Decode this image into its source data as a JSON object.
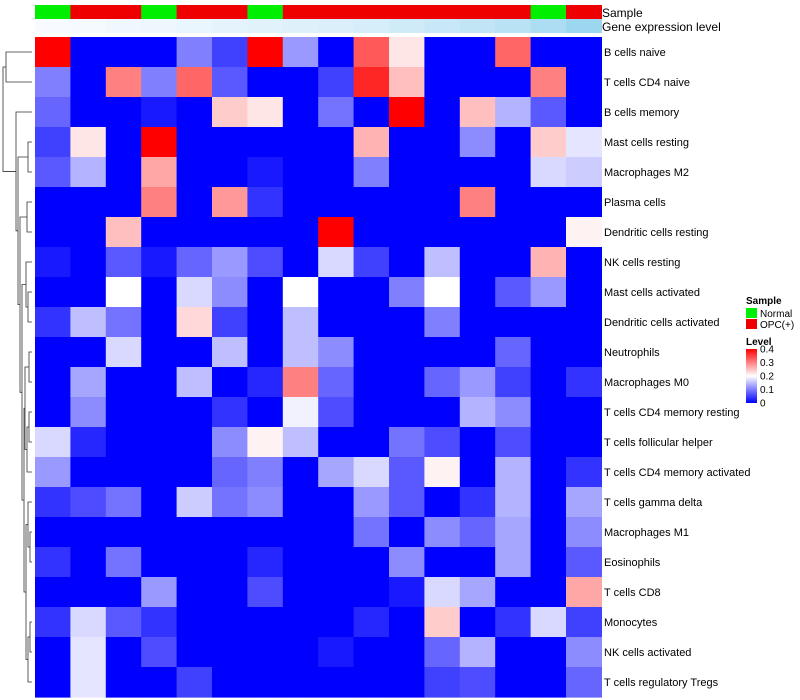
{
  "chart_data": {
    "type": "heatmap",
    "title": "",
    "rows": [
      "B cells naive",
      "T cells CD4 naive",
      "B cells memory",
      "Mast cells resting",
      "Macrophages M2",
      "Plasma cells",
      "Dendritic cells resting",
      "NK cells resting",
      "Mast cells activated",
      "Dendritic cells activated",
      "Neutrophils",
      "Macrophages M0",
      "T cells CD4 memory resting",
      "T cells follicular helper",
      "T cells CD4 memory activated",
      "T cells gamma delta",
      "Macrophages M1",
      "Eosinophils",
      "T cells CD8",
      "Monocytes",
      "NK cells activated",
      "T cells regulatory  Tregs"
    ],
    "columns": 16,
    "values": [
      [
        0.4,
        0.0,
        0.0,
        0.0,
        0.1,
        0.05,
        0.4,
        0.12,
        0.0,
        0.33,
        0.22,
        0.0,
        0.0,
        0.32,
        0.0,
        0.0
      ],
      [
        0.1,
        0.0,
        0.3,
        0.1,
        0.32,
        0.07,
        0.0,
        0.0,
        0.05,
        0.37,
        0.25,
        0.0,
        0.0,
        0.0,
        0.3,
        0.0
      ],
      [
        0.08,
        0.0,
        0.0,
        0.02,
        0.0,
        0.24,
        0.22,
        0.0,
        0.09,
        0.0,
        0.4,
        0.0,
        0.25,
        0.14,
        0.07,
        0.0
      ],
      [
        0.05,
        0.22,
        0.0,
        0.4,
        0.0,
        0.0,
        0.0,
        0.0,
        0.0,
        0.26,
        0.0,
        0.0,
        0.11,
        0.0,
        0.24,
        0.18
      ],
      [
        0.07,
        0.14,
        0.0,
        0.27,
        0.0,
        0.0,
        0.02,
        0.0,
        0.0,
        0.1,
        0.0,
        0.0,
        0.0,
        0.0,
        0.17,
        0.16
      ],
      [
        0.0,
        0.0,
        0.0,
        0.3,
        0.0,
        0.28,
        0.04,
        0.0,
        0.0,
        0.0,
        0.0,
        0.0,
        0.3,
        0.0,
        0.0,
        0.0
      ],
      [
        0.0,
        0.0,
        0.25,
        0.0,
        0.0,
        0.0,
        0.0,
        0.0,
        0.4,
        0.0,
        0.0,
        0.0,
        0.0,
        0.0,
        0.0,
        0.21
      ],
      [
        0.02,
        0.0,
        0.07,
        0.02,
        0.08,
        0.12,
        0.06,
        0.0,
        0.17,
        0.05,
        0.0,
        0.15,
        0.0,
        0.0,
        0.26,
        0.0
      ],
      [
        0.0,
        0.0,
        0.2,
        0.0,
        0.17,
        0.11,
        0.0,
        0.2,
        0.0,
        0.0,
        0.1,
        0.2,
        0.0,
        0.07,
        0.12,
        0.0
      ],
      [
        0.04,
        0.15,
        0.09,
        0.0,
        0.23,
        0.05,
        0.0,
        0.15,
        0.0,
        0.0,
        0.0,
        0.1,
        0.0,
        0.0,
        0.0,
        0.0
      ],
      [
        0.0,
        0.0,
        0.17,
        0.0,
        0.0,
        0.15,
        0.0,
        0.15,
        0.11,
        0.0,
        0.0,
        0.0,
        0.0,
        0.08,
        0.0,
        0.0
      ],
      [
        0.0,
        0.13,
        0.0,
        0.0,
        0.15,
        0.0,
        0.03,
        0.3,
        0.08,
        0.0,
        0.0,
        0.08,
        0.12,
        0.05,
        0.0,
        0.04
      ],
      [
        0.0,
        0.11,
        0.0,
        0.0,
        0.0,
        0.04,
        0.0,
        0.19,
        0.06,
        0.0,
        0.0,
        0.0,
        0.14,
        0.11,
        0.0,
        0.0
      ],
      [
        0.17,
        0.03,
        0.0,
        0.0,
        0.0,
        0.11,
        0.21,
        0.15,
        0.0,
        0.0,
        0.09,
        0.06,
        0.0,
        0.06,
        0.0,
        0.0
      ],
      [
        0.12,
        0.0,
        0.0,
        0.0,
        0.0,
        0.08,
        0.1,
        0.0,
        0.13,
        0.17,
        0.07,
        0.21,
        0.0,
        0.14,
        0.0,
        0.04
      ],
      [
        0.04,
        0.06,
        0.09,
        0.0,
        0.16,
        0.09,
        0.11,
        0.0,
        0.0,
        0.12,
        0.07,
        0.0,
        0.04,
        0.14,
        0.0,
        0.13
      ],
      [
        0.0,
        0.0,
        0.0,
        0.0,
        0.0,
        0.0,
        0.0,
        0.0,
        0.0,
        0.09,
        0.0,
        0.11,
        0.08,
        0.13,
        0.0,
        0.11
      ],
      [
        0.04,
        0.0,
        0.09,
        0.0,
        0.0,
        0.0,
        0.03,
        0.0,
        0.0,
        0.0,
        0.11,
        0.0,
        0.0,
        0.13,
        0.0,
        0.07
      ],
      [
        0.0,
        0.0,
        0.0,
        0.12,
        0.0,
        0.0,
        0.06,
        0.0,
        0.0,
        0.0,
        0.02,
        0.17,
        0.13,
        0.0,
        0.0,
        0.27
      ],
      [
        0.04,
        0.17,
        0.07,
        0.04,
        0.0,
        0.0,
        0.0,
        0.0,
        0.0,
        0.03,
        0.0,
        0.24,
        0.0,
        0.04,
        0.17,
        0.05
      ],
      [
        0.0,
        0.18,
        0.0,
        0.06,
        0.0,
        0.0,
        0.0,
        0.0,
        0.02,
        0.0,
        0.0,
        0.08,
        0.14,
        0.0,
        0.0,
        0.11
      ],
      [
        0.0,
        0.18,
        0.0,
        0.0,
        0.05,
        0.0,
        0.0,
        0.0,
        0.0,
        0.0,
        0.0,
        0.05,
        0.06,
        0.0,
        0.0,
        0.08
      ]
    ],
    "annotations": {
      "sample": {
        "label": "Sample",
        "values": [
          "Normal",
          "OPC(+)",
          "OPC(+)",
          "Normal",
          "OPC(+)",
          "OPC(+)",
          "Normal",
          "OPC(+)",
          "OPC(+)",
          "OPC(+)",
          "OPC(+)",
          "OPC(+)",
          "OPC(+)",
          "OPC(+)",
          "Normal",
          "OPC(+)"
        ],
        "colors": {
          "Normal": "#00ee00",
          "OPC(+)": "#ee0000"
        }
      },
      "gene_expression_level": {
        "label": "Gene expression level",
        "values": [
          0.0,
          0.03,
          0.06,
          0.09,
          0.12,
          0.16,
          0.19,
          0.22,
          0.26,
          0.3,
          0.36,
          0.42,
          0.48,
          0.55,
          0.66,
          0.8
        ],
        "low_color": "#f7fbff",
        "high_color": "#87ceeb"
      }
    },
    "legend": {
      "position": "right",
      "sample_title": "Sample",
      "sample_entries": [
        "Normal",
        "OPC(+)"
      ],
      "level_title": "Level",
      "level_ticks": [
        "0.4",
        "0.3",
        "0.2",
        "0.1",
        "0"
      ],
      "level_tick_values": [
        0.4,
        0.3,
        0.2,
        0.1,
        0.0
      ]
    },
    "color_scale": {
      "low": "#0000ff",
      "mid": "#ffffff",
      "high": "#ff0000",
      "min": 0.0,
      "mid_value": 0.2,
      "max": 0.4
    }
  }
}
